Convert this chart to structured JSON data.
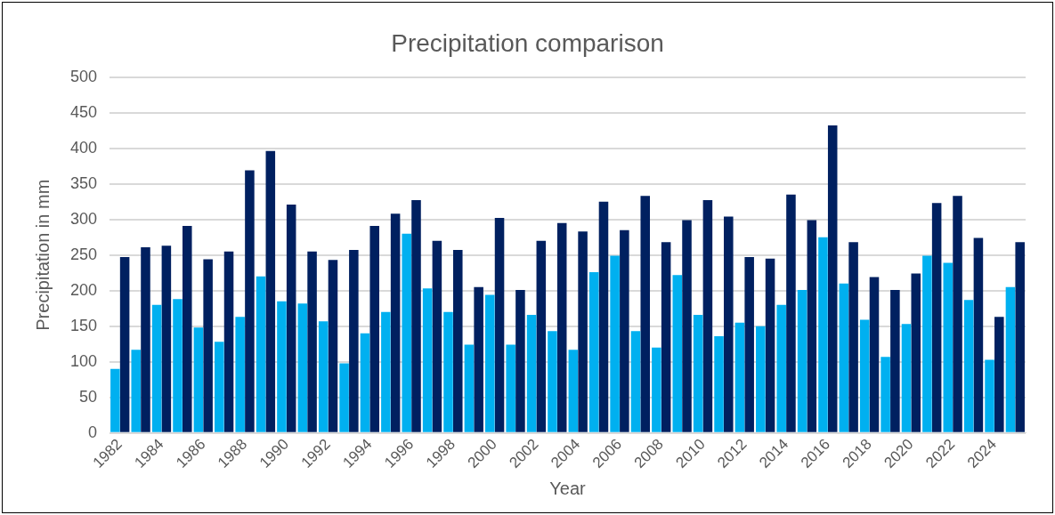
{
  "chart_data": {
    "type": "bar",
    "title": "Precipitation comparison",
    "xlabel": "Year",
    "ylabel": "Precipitation in mm",
    "categories": [
      "1982",
      null,
      "1984",
      null,
      "1986",
      null,
      "1988",
      null,
      "1990",
      null,
      "1992",
      null,
      "1994",
      null,
      "1996",
      null,
      "1998",
      null,
      "2000",
      null,
      "2002",
      null,
      "2004",
      null,
      "2006",
      null,
      "2008",
      null,
      "2010",
      null,
      "2012",
      null,
      "2014",
      null,
      "2016",
      null,
      "2018",
      null,
      "2020",
      null,
      "2022",
      null,
      "2024",
      null
    ],
    "series": [
      {
        "color": "#00b0f0",
        "values": [
          90,
          117,
          180,
          188,
          148,
          128,
          163,
          220,
          185,
          182,
          157,
          98,
          140,
          170,
          280,
          203,
          170,
          124,
          194,
          124,
          166,
          143,
          117,
          226,
          249,
          143,
          120,
          222,
          166,
          136,
          155,
          150,
          180,
          201,
          275,
          210,
          159,
          107,
          153,
          249,
          239,
          187,
          103,
          205
        ]
      },
      {
        "color": "#002060",
        "values": [
          247,
          261,
          263,
          291,
          244,
          255,
          369,
          396,
          321,
          255,
          243,
          257,
          291,
          308,
          327,
          270,
          257,
          205,
          302,
          201,
          270,
          295,
          283,
          325,
          285,
          333,
          268,
          299,
          327,
          304,
          247,
          245,
          335,
          299,
          432,
          268,
          219,
          201,
          224,
          323,
          333,
          274,
          163,
          268
        ]
      }
    ],
    "ylim": [
      0,
      500
    ],
    "yticks": [
      0,
      50,
      100,
      150,
      200,
      250,
      300,
      350,
      400,
      450,
      500
    ],
    "grid": "y",
    "legend": false
  }
}
